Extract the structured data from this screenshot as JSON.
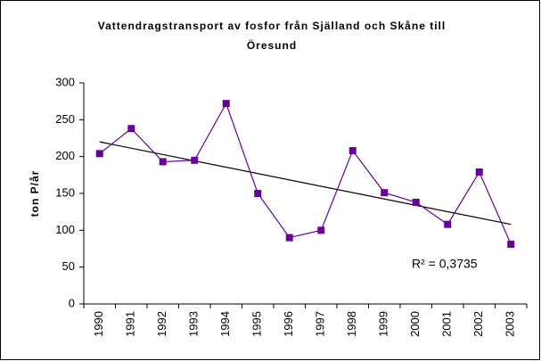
{
  "chart_data": {
    "type": "line",
    "title": [
      "Vattendragstransport av fosfor från Själland och Skåne till",
      "Öresund"
    ],
    "y_label": "ton P/år",
    "categories": [
      "1990",
      "1991",
      "1992",
      "1993",
      "1994",
      "1995",
      "1996",
      "1997",
      "1998",
      "1999",
      "2000",
      "2001",
      "2002",
      "2003"
    ],
    "series": [
      {
        "name": "Fosfor",
        "color": "#660099",
        "values": [
          204,
          238,
          193,
          195,
          272,
          150,
          90,
          100,
          208,
          151,
          138,
          108,
          179,
          81
        ]
      }
    ],
    "trendline": {
      "color": "#000000",
      "values": [
        220,
        108
      ]
    },
    "annotation": "R² = 0,3735",
    "ylim": [
      0,
      300
    ],
    "yticks": [
      0,
      50,
      100,
      150,
      200,
      250,
      300
    ],
    "grid": false,
    "legend": false
  }
}
